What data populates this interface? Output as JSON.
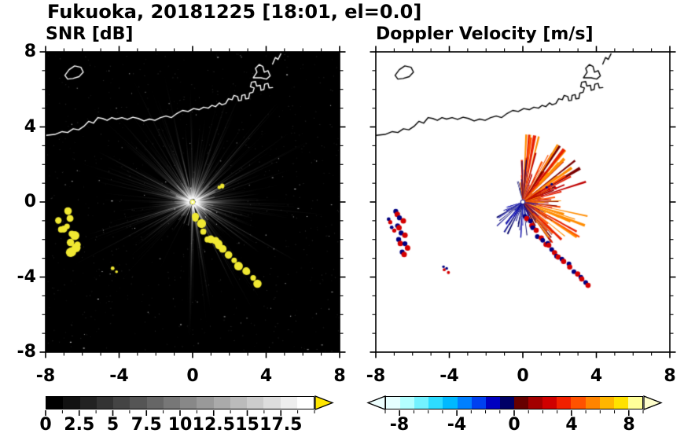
{
  "title": "Fukuoka, 20181225 [18:01, el=0.0]",
  "panels": {
    "snr": {
      "title": "SNR [dB]"
    },
    "doppler": {
      "title": "Doppler Velocity [m/s]"
    }
  },
  "axes": {
    "xtick_labels": [
      "-8",
      "-4",
      "0",
      "4",
      "8"
    ],
    "ytick_labels": [
      "8",
      "4",
      "0",
      "-4",
      "-8"
    ]
  },
  "colorbars": {
    "snr": {
      "tick_labels": [
        "0",
        "2.5",
        "5",
        "7.5",
        "10",
        "12.5",
        "15",
        "17.5"
      ],
      "tick_values": [
        0,
        2.5,
        5,
        7.5,
        10,
        12.5,
        15,
        17.5
      ],
      "range": [
        0,
        20
      ],
      "minor_step": 1.25,
      "colors": [
        "#000000",
        "#111111",
        "#222222",
        "#333333",
        "#444444",
        "#555555",
        "#666666",
        "#777777",
        "#888888",
        "#999999",
        "#aaaaaa",
        "#bbbbbb",
        "#cccccc",
        "#dddddd",
        "#eeeeee",
        "#ffffff"
      ],
      "over_color": "#ffe600"
    },
    "doppler": {
      "tick_labels": [
        "-8",
        "-4",
        "0",
        "4",
        "8"
      ],
      "tick_values": [
        -8,
        -4,
        0,
        4,
        8
      ],
      "range": [
        -9,
        9
      ],
      "minor_step": 1,
      "colors": [
        "#e6ffff",
        "#b3ffff",
        "#73f2ff",
        "#2edcff",
        "#00b9ff",
        "#0080ff",
        "#0040f0",
        "#0000c0",
        "#000066",
        "#660000",
        "#a30000",
        "#d00000",
        "#f22000",
        "#ff5200",
        "#ff8400",
        "#ffb600",
        "#ffe200",
        "#ffff99"
      ],
      "under_color": "#eeffff",
      "over_color": "#ffffcc"
    }
  },
  "map_overlay": {
    "coastline": [
      [
        -8.0,
        3.55
      ],
      [
        -7.5,
        3.6
      ],
      [
        -7.1,
        3.75
      ],
      [
        -6.8,
        3.7
      ],
      [
        -6.5,
        3.9
      ],
      [
        -6.2,
        3.85
      ],
      [
        -5.9,
        4.05
      ],
      [
        -5.65,
        4.3
      ],
      [
        -5.4,
        4.2
      ],
      [
        -5.15,
        4.5
      ],
      [
        -4.9,
        4.45
      ],
      [
        -4.65,
        4.35
      ],
      [
        -4.4,
        4.5
      ],
      [
        -4.15,
        4.42
      ],
      [
        -3.85,
        4.5
      ],
      [
        -3.55,
        4.4
      ],
      [
        -3.25,
        4.52
      ],
      [
        -2.95,
        4.45
      ],
      [
        -2.65,
        4.32
      ],
      [
        -2.35,
        4.42
      ],
      [
        -2.05,
        4.35
      ],
      [
        -1.75,
        4.5
      ],
      [
        -1.45,
        4.58
      ],
      [
        -1.15,
        4.5
      ],
      [
        -0.85,
        4.72
      ],
      [
        -0.55,
        4.88
      ],
      [
        -0.25,
        4.82
      ],
      [
        0.05,
        4.98
      ],
      [
        0.35,
        4.92
      ],
      [
        0.6,
        5.05
      ],
      [
        0.85,
        5.0
      ],
      [
        1.05,
        5.15
      ],
      [
        1.25,
        5.08
      ],
      [
        1.45,
        5.28
      ],
      [
        1.6,
        5.18
      ],
      [
        1.8,
        5.25
      ],
      [
        1.95,
        5.5
      ],
      [
        2.15,
        5.45
      ],
      [
        2.25,
        5.68
      ],
      [
        2.45,
        5.62
      ],
      [
        2.5,
        5.4
      ],
      [
        2.65,
        5.42
      ],
      [
        2.68,
        5.68
      ],
      [
        2.85,
        5.72
      ],
      [
        2.88,
        5.5
      ],
      [
        3.05,
        5.52
      ],
      [
        3.1,
        5.8
      ],
      [
        3.28,
        5.85
      ],
      [
        3.35,
        6.08
      ],
      [
        3.15,
        6.14
      ],
      [
        3.2,
        6.38
      ],
      [
        3.42,
        6.42
      ],
      [
        3.48,
        6.18
      ],
      [
        3.68,
        6.22
      ],
      [
        3.72,
        5.95
      ],
      [
        3.88,
        6.0
      ],
      [
        3.92,
        6.28
      ],
      [
        4.1,
        6.32
      ],
      [
        4.16,
        6.08
      ],
      [
        4.35,
        6.1
      ]
    ],
    "island": [
      [
        -6.95,
        6.75
      ],
      [
        -6.72,
        7.05
      ],
      [
        -6.42,
        7.25
      ],
      [
        -6.08,
        7.18
      ],
      [
        -5.95,
        6.92
      ],
      [
        -6.18,
        6.68
      ],
      [
        -6.52,
        6.58
      ],
      [
        -6.8,
        6.55
      ],
      [
        -6.95,
        6.75
      ]
    ],
    "harbor": [
      [
        3.3,
        6.62
      ],
      [
        3.5,
        6.92
      ],
      [
        3.42,
        7.12
      ],
      [
        3.62,
        7.32
      ],
      [
        3.82,
        7.22
      ],
      [
        3.9,
        6.92
      ],
      [
        4.1,
        7.0
      ],
      [
        4.22,
        6.72
      ],
      [
        4.02,
        6.55
      ],
      [
        3.72,
        6.62
      ],
      [
        3.3,
        6.62
      ]
    ],
    "pier": [
      [
        4.35,
        7.35
      ],
      [
        4.5,
        7.7
      ],
      [
        4.65,
        7.6
      ],
      [
        4.8,
        7.9
      ]
    ]
  },
  "radar_echoes": {
    "chains": [
      {
        "size": 0.2,
        "points": [
          [
            -6.85,
            -0.55
          ],
          [
            -6.6,
            -0.95
          ],
          [
            -6.78,
            -1.35
          ],
          [
            -6.5,
            -1.7
          ],
          [
            -6.68,
            -2.1
          ],
          [
            -6.35,
            -2.35
          ],
          [
            -6.55,
            -2.75
          ]
        ]
      },
      {
        "size": 0.15,
        "points": [
          [
            -7.25,
            -1.05
          ],
          [
            -7.1,
            -1.45
          ]
        ]
      },
      {
        "size": 0.11,
        "points": [
          [
            -4.3,
            -3.55
          ],
          [
            -4.05,
            -3.65
          ]
        ]
      },
      {
        "size": 0.19,
        "points": [
          [
            0.2,
            -0.85
          ],
          [
            0.45,
            -1.15
          ],
          [
            0.65,
            -1.5
          ],
          [
            0.9,
            -1.9
          ],
          [
            1.15,
            -2.15
          ],
          [
            1.4,
            -2.3
          ],
          [
            1.65,
            -2.6
          ],
          [
            1.9,
            -2.9
          ],
          [
            2.2,
            -3.15
          ],
          [
            2.55,
            -3.4
          ],
          [
            2.9,
            -3.75
          ],
          [
            3.2,
            -4.05
          ],
          [
            3.45,
            -4.35
          ]
        ]
      },
      {
        "size": 0.1,
        "points": [
          [
            1.35,
            0.7
          ],
          [
            1.7,
            0.82
          ]
        ]
      }
    ]
  },
  "chart_data": [
    {
      "type": "heatmap",
      "panel": "snr",
      "title": "SNR [dB]",
      "units": "dB",
      "xlim": [
        -8,
        8
      ],
      "ylim": [
        -8,
        8
      ],
      "xticks": [
        -8,
        -4,
        0,
        4,
        8
      ],
      "yticks": [
        -8,
        -4,
        0,
        4,
        8
      ],
      "minor_tick_step": 1,
      "background": "#000000",
      "radar_center": [
        0,
        0
      ],
      "value_range": [
        0,
        17.5
      ],
      "beams": {
        "count": 680,
        "shadow_sectors_deg": [
          [
            228,
            264
          ],
          [
            283,
            296
          ]
        ],
        "max_length": 7.4
      },
      "echo_color": "#f0e832",
      "coastline_color": "#ffffff"
    },
    {
      "type": "heatmap",
      "panel": "doppler",
      "title": "Doppler Velocity [m/s]",
      "units": "m/s",
      "xlim": [
        -8,
        8
      ],
      "ylim": [
        -8,
        8
      ],
      "xticks": [
        -8,
        -4,
        0,
        4,
        8
      ],
      "yticks": [
        -8,
        -4,
        0,
        4,
        8
      ],
      "minor_tick_step": 1,
      "background": "#ffffff",
      "radar_center": [
        0,
        0
      ],
      "value_range": [
        -9,
        9
      ],
      "wedges": {
        "red": {
          "sector_deg": [
            -65,
            100
          ],
          "long_sector_deg": [
            20,
            88
          ],
          "count": 240,
          "max_length": 3.6,
          "colors": [
            "#7a0000",
            "#c00000",
            "#e82000",
            "#ff5200",
            "#ff8c00"
          ]
        },
        "blue": {
          "sector_deg": [
            195,
            305
          ],
          "count": 110,
          "max_length": 1.9,
          "colors": [
            "#000066",
            "#0000b4",
            "#1e1e96"
          ]
        },
        "blue_up": {
          "sector_deg": [
            80,
            108
          ],
          "count": 10,
          "max_length": 2.3
        },
        "blue_right": {
          "sector_deg": [
            -70,
            0
          ],
          "count": 28,
          "max_length": 1.2
        }
      },
      "echo_colors": [
        "#d40000",
        "#000080"
      ],
      "coastline_color": "#000000"
    }
  ]
}
